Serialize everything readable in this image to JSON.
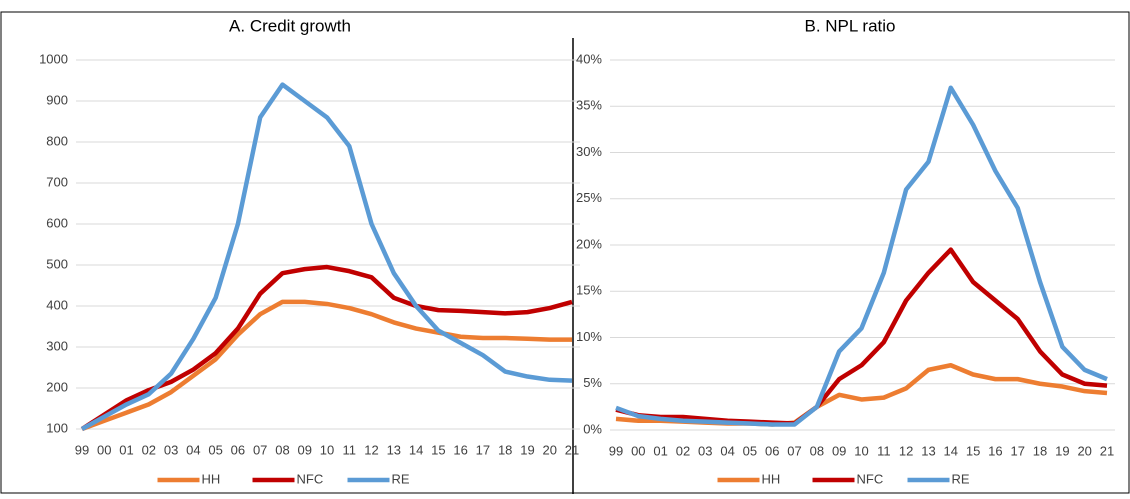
{
  "chart_data": [
    {
      "type": "line",
      "title": "A. Credit growth",
      "categories": [
        "99",
        "00",
        "01",
        "02",
        "03",
        "04",
        "05",
        "06",
        "07",
        "08",
        "09",
        "10",
        "11",
        "12",
        "13",
        "14",
        "15",
        "16",
        "17",
        "18",
        "19",
        "20",
        "21"
      ],
      "series": [
        {
          "name": "HH",
          "color": "#ed7d31",
          "values": [
            100,
            120,
            140,
            160,
            190,
            230,
            270,
            330,
            380,
            410,
            410,
            405,
            395,
            380,
            360,
            345,
            335,
            325,
            322,
            322,
            320,
            318,
            318
          ]
        },
        {
          "name": "NFC",
          "color": "#c00000",
          "values": [
            100,
            135,
            170,
            195,
            215,
            245,
            285,
            345,
            430,
            480,
            490,
            495,
            485,
            470,
            420,
            400,
            390,
            388,
            385,
            382,
            385,
            395,
            410
          ]
        },
        {
          "name": "RE",
          "color": "#5b9bd5",
          "values": [
            100,
            130,
            160,
            185,
            235,
            320,
            420,
            600,
            860,
            940,
            900,
            860,
            790,
            600,
            480,
            400,
            340,
            310,
            280,
            240,
            228,
            220,
            218
          ]
        }
      ],
      "ylim": [
        100,
        1000
      ],
      "yticks": [
        100,
        200,
        300,
        400,
        500,
        600,
        700,
        800,
        900,
        1000
      ],
      "grid": true,
      "legend": "bottom"
    },
    {
      "type": "line",
      "title": "B. NPL ratio",
      "categories": [
        "99",
        "00",
        "01",
        "02",
        "03",
        "04",
        "05",
        "06",
        "07",
        "08",
        "09",
        "10",
        "11",
        "12",
        "13",
        "14",
        "15",
        "16",
        "17",
        "18",
        "19",
        "20",
        "21"
      ],
      "series": [
        {
          "name": "HH",
          "color": "#ed7d31",
          "values": [
            1.2,
            1.0,
            1.0,
            0.9,
            0.8,
            0.7,
            0.7,
            0.6,
            0.8,
            2.5,
            3.8,
            3.3,
            3.5,
            4.5,
            6.5,
            7,
            6,
            5.5,
            5.5,
            5,
            4.7,
            4.2,
            4
          ]
        },
        {
          "name": "NFC",
          "color": "#c00000",
          "values": [
            2.2,
            1.6,
            1.4,
            1.4,
            1.2,
            1.0,
            0.9,
            0.8,
            0.7,
            2.5,
            5.5,
            7,
            9.5,
            14,
            17,
            19.5,
            16,
            14,
            12,
            8.5,
            6,
            5,
            4.8
          ]
        },
        {
          "name": "RE",
          "color": "#5b9bd5",
          "values": [
            2.4,
            1.5,
            1.2,
            1.0,
            0.9,
            0.8,
            0.7,
            0.6,
            0.6,
            2.5,
            8.5,
            11,
            17,
            26,
            29,
            37,
            33,
            28,
            24,
            16,
            9,
            6.5,
            5.5
          ]
        }
      ],
      "ylim": [
        0,
        40
      ],
      "yticks": [
        {
          "value": 0,
          "label": "0%"
        },
        {
          "value": 5,
          "label": "5%"
        },
        {
          "value": 10,
          "label": "10%"
        },
        {
          "value": 15,
          "label": "15%"
        },
        {
          "value": 20,
          "label": "20%"
        },
        {
          "value": 25,
          "label": "25%"
        },
        {
          "value": 30,
          "label": "30%"
        },
        {
          "value": 35,
          "label": "35%"
        },
        {
          "value": 40,
          "label": "40%"
        }
      ],
      "grid": true,
      "legend": "bottom"
    }
  ]
}
